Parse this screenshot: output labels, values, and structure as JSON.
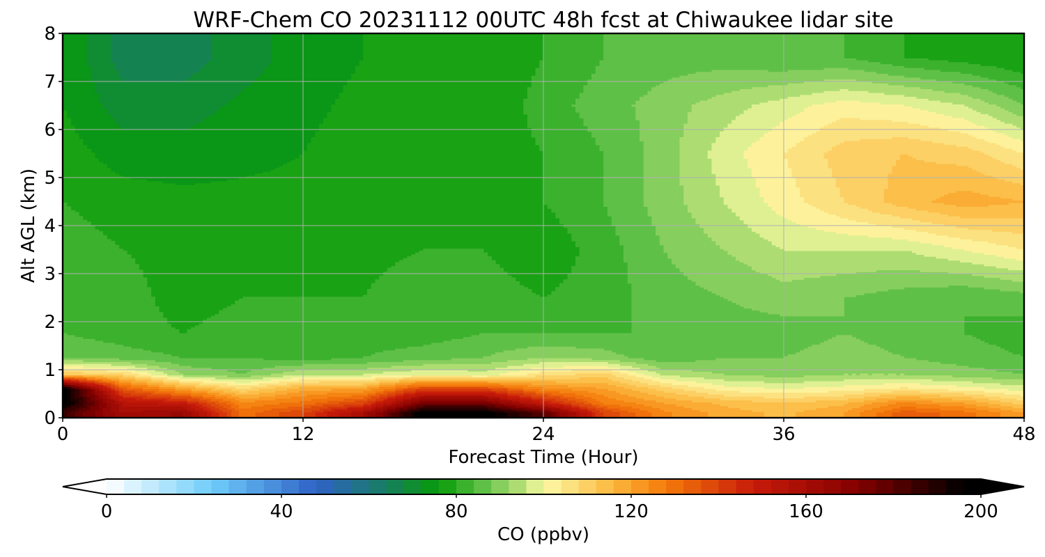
{
  "chart_data": {
    "type": "heatmap",
    "title": "WRF-Chem CO  20231112 00UTC 48h fcst at Chiwaukee lidar site",
    "xlabel": "Forecast Time (Hour)",
    "ylabel": "Alt AGL (km)",
    "xlim": [
      0,
      48
    ],
    "ylim": [
      0,
      8
    ],
    "x_ticks": [
      0,
      12,
      24,
      36,
      48
    ],
    "y_ticks": [
      0,
      1,
      2,
      3,
      4,
      5,
      6,
      7,
      8
    ],
    "grid": true,
    "x_hours": [
      0,
      3,
      6,
      9,
      12,
      15,
      18,
      21,
      24,
      27,
      30,
      33,
      36,
      39,
      42,
      45,
      48
    ],
    "y_km": [
      0.1,
      0.3,
      0.6,
      0.9,
      1.25,
      1.75,
      2.5,
      3.5,
      4.5,
      5.5,
      6.5,
      7.5
    ],
    "values_ppbv": [
      [
        185,
        160,
        165,
        130,
        140,
        160,
        200,
        200,
        180,
        140,
        125,
        118,
        115,
        120,
        135,
        130,
        120
      ],
      [
        200,
        155,
        150,
        125,
        130,
        140,
        175,
        175,
        150,
        128,
        120,
        115,
        112,
        115,
        125,
        120,
        110
      ],
      [
        200,
        135,
        120,
        108,
        118,
        120,
        140,
        140,
        125,
        120,
        110,
        102,
        100,
        102,
        105,
        102,
        98
      ],
      [
        112,
        108,
        92,
        88,
        96,
        96,
        100,
        98,
        106,
        110,
        95,
        92,
        90,
        92,
        92,
        90,
        88
      ],
      [
        88,
        86,
        84,
        84,
        82,
        84,
        86,
        88,
        92,
        90,
        85,
        88,
        88,
        90,
        88,
        86,
        84
      ],
      [
        84,
        82,
        80,
        82,
        80,
        82,
        82,
        84,
        84,
        84,
        84,
        86,
        86,
        88,
        86,
        84,
        82
      ],
      [
        82,
        82,
        78,
        80,
        80,
        80,
        82,
        82,
        80,
        82,
        86,
        88,
        90,
        88,
        86,
        84,
        86
      ],
      [
        82,
        80,
        78,
        79,
        78,
        79,
        80,
        80,
        77,
        82,
        88,
        92,
        96,
        96,
        96,
        100,
        104
      ],
      [
        80,
        78,
        77,
        77,
        77,
        78,
        79,
        78,
        80,
        84,
        90,
        96,
        102,
        108,
        114,
        118,
        116
      ],
      [
        78,
        74,
        74,
        75,
        76,
        78,
        78,
        77,
        80,
        84,
        90,
        98,
        104,
        110,
        112,
        110,
        104
      ],
      [
        76,
        70,
        70,
        73,
        75,
        77,
        77,
        76,
        82,
        86,
        90,
        94,
        98,
        102,
        100,
        96,
        88
      ],
      [
        76,
        66,
        66,
        70,
        74,
        76,
        77,
        76,
        80,
        84,
        86,
        86,
        84,
        84,
        80,
        78,
        76
      ]
    ],
    "colorbar": {
      "label": "CO  (ppbv)",
      "min": 0,
      "max": 200,
      "step": 4,
      "extend": "both",
      "ticks": [
        0,
        40,
        80,
        120,
        160,
        200
      ],
      "color_stops": [
        {
          "v": 0,
          "c": "#ffffff"
        },
        {
          "v": 24,
          "c": "#6fcdfa"
        },
        {
          "v": 48,
          "c": "#2f62c6"
        },
        {
          "v": 62,
          "c": "#1b7a6e"
        },
        {
          "v": 76,
          "c": "#079b07"
        },
        {
          "v": 86,
          "c": "#5fc048"
        },
        {
          "v": 96,
          "c": "#c0e47c"
        },
        {
          "v": 100,
          "c": "#fdfba8"
        },
        {
          "v": 116,
          "c": "#fbb63c"
        },
        {
          "v": 128,
          "c": "#f47a0a"
        },
        {
          "v": 148,
          "c": "#c81a0a"
        },
        {
          "v": 172,
          "c": "#820000"
        },
        {
          "v": 196,
          "c": "#000000"
        }
      ]
    }
  }
}
